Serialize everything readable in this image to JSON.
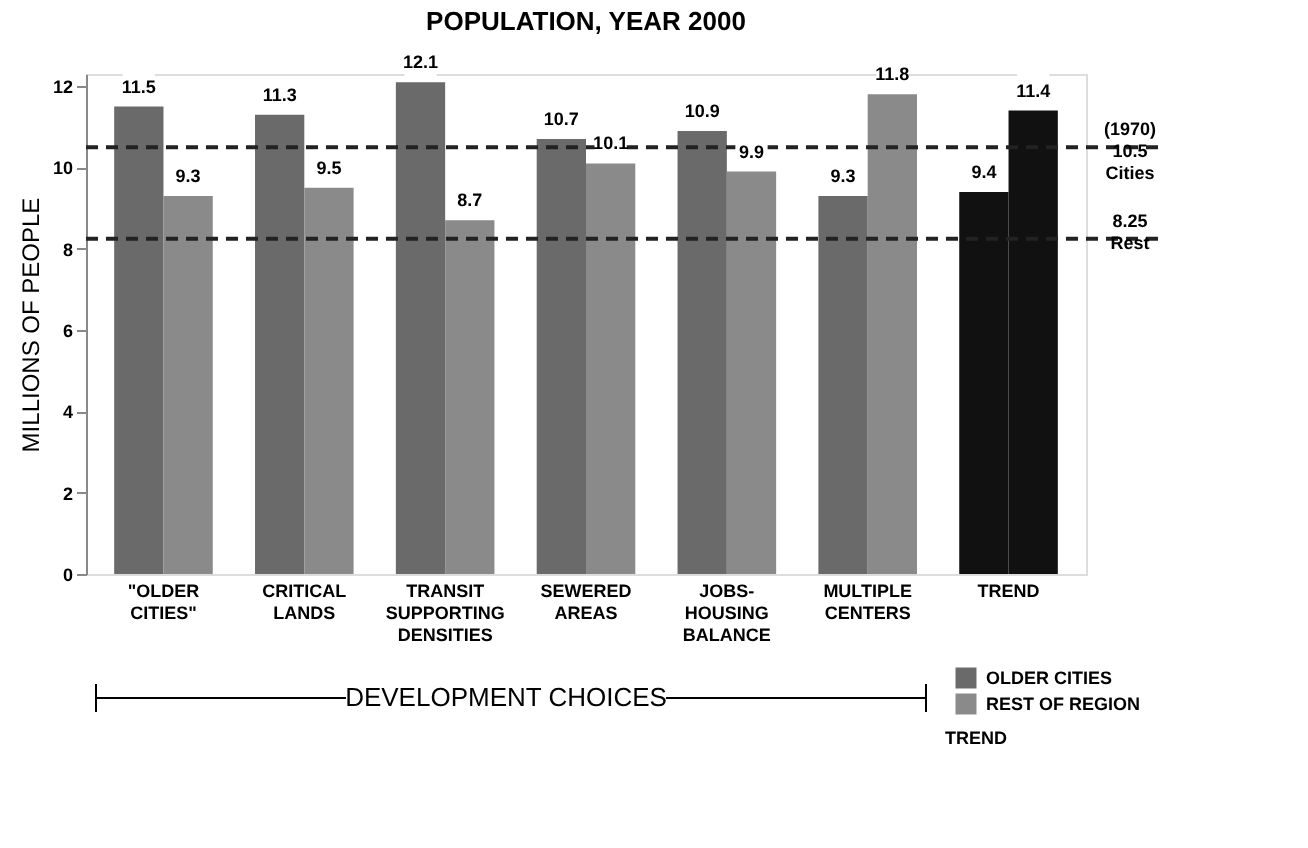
{
  "chart_data": {
    "type": "bar",
    "title": "POPULATION, YEAR 2000",
    "ylabel": "MILLIONS OF PEOPLE",
    "categories": [
      "\"OLDER\nCITIES\"",
      "CRITICAL\nLANDS",
      "TRANSIT\nSUPPORTING\nDENSITIES",
      "SEWERED\nAREAS",
      "JOBS-\nHOUSING\nBALANCE",
      "MULTIPLE\nCENTERS",
      "TREND"
    ],
    "series": [
      {
        "name": "OLDER CITIES",
        "color": "#6a6a6a",
        "colors": [
          "#6a6a6a",
          "#6a6a6a",
          "#6a6a6a",
          "#6a6a6a",
          "#6a6a6a",
          "#6a6a6a",
          "#111111"
        ],
        "values": [
          11.5,
          11.3,
          12.1,
          10.7,
          10.9,
          9.3,
          9.4
        ]
      },
      {
        "name": "REST OF REGION",
        "color": "#8a8a8a",
        "colors": [
          "#8a8a8a",
          "#8a8a8a",
          "#8a8a8a",
          "#8a8a8a",
          "#8a8a8a",
          "#8a8a8a",
          "#111111"
        ],
        "values": [
          9.3,
          9.5,
          8.7,
          10.1,
          9.9,
          11.8,
          11.4
        ]
      }
    ],
    "ylim": [
      0,
      12.3
    ],
    "yticks": [
      0,
      2,
      4,
      6,
      8,
      10,
      12
    ],
    "grid": false,
    "data_labels": true,
    "legend": "bottom right",
    "ref_lines": [
      {
        "axis": "y",
        "value": 10.5,
        "label": "(1970) 10.5 Cities",
        "line_style": "dashed",
        "color": "#222222"
      },
      {
        "axis": "y",
        "value": 8.25,
        "label": "8.25 Rest",
        "line_style": "dashed",
        "color": "#222222"
      }
    ],
    "annotations": [
      "DEVELOPMENT CHOICES",
      "TREND"
    ]
  }
}
